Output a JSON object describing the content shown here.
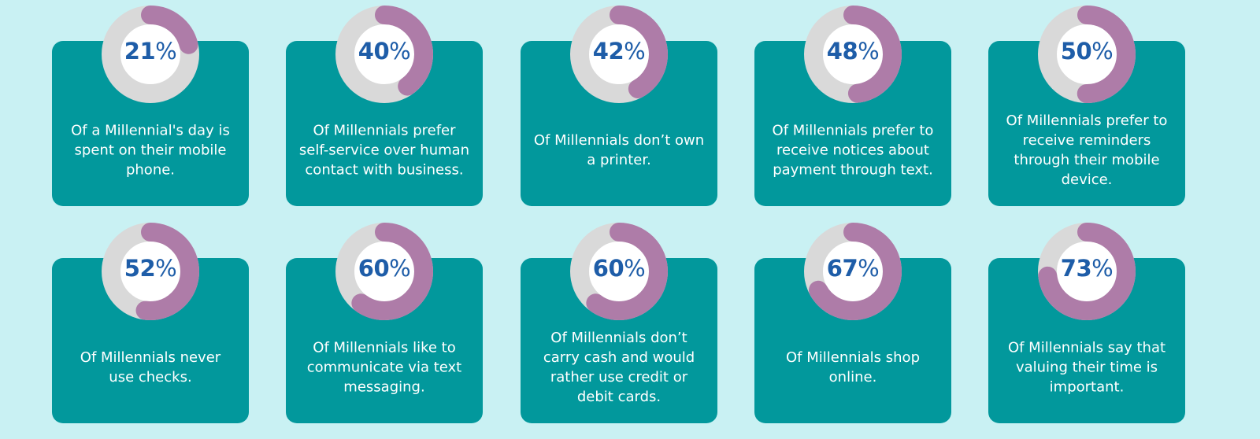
{
  "colors": {
    "background": "#c9f1f3",
    "card": "#02989c",
    "ring_track": "#d9d9d9",
    "ring_fill": "#ae7ca8",
    "donut_center": "#ffffff",
    "percent_text": "#1e5da8",
    "card_text": "#ffffff"
  },
  "chart_data": {
    "type": "donut-grid",
    "percent_sign": "%",
    "items": [
      {
        "value": 21,
        "label": "Of a Millennial's day is spent on their mobile phone.",
        "lines": [
          "Of a Millennial's day is",
          "spent on their mobile",
          "phone."
        ]
      },
      {
        "value": 40,
        "label": "Of Millennials prefer self-service over human contact with business.",
        "lines": [
          "Of Millennials prefer",
          "self-service over human",
          "contact with business."
        ]
      },
      {
        "value": 42,
        "label": "Of Millennials don’t own a printer.",
        "lines": [
          "Of Millennials don’t own",
          "a printer."
        ]
      },
      {
        "value": 48,
        "label": "Of Millennials prefer to receive notices about payment through text.",
        "lines": [
          "Of Millennials prefer to",
          "receive notices about",
          "payment through text."
        ]
      },
      {
        "value": 50,
        "label": "Of Millennials prefer to receive reminders through their mobile device.",
        "lines": [
          "Of Millennials prefer to",
          "receive reminders",
          "through their mobile",
          "device."
        ]
      },
      {
        "value": 52,
        "label": "Of Millennials never use checks.",
        "lines": [
          "Of Millennials never",
          "use checks."
        ]
      },
      {
        "value": 60,
        "label": "Of Millennials like to communicate via text messaging.",
        "lines": [
          "Of Millennials like to",
          "communicate via text",
          "messaging."
        ]
      },
      {
        "value": 60,
        "label": "Of Millennials don’t carry cash and would rather use credit or debit cards.",
        "lines": [
          "Of Millennials don’t",
          "carry cash and would",
          "rather use credit or",
          "debit cards."
        ]
      },
      {
        "value": 67,
        "label": "Of Millennials shop online.",
        "lines": [
          "Of Millennials shop",
          "online."
        ]
      },
      {
        "value": 73,
        "label": "Of Millennials say that valuing their time is important.",
        "lines": [
          "Of Millennials say that",
          "valuing their time is",
          "important."
        ]
      }
    ]
  }
}
